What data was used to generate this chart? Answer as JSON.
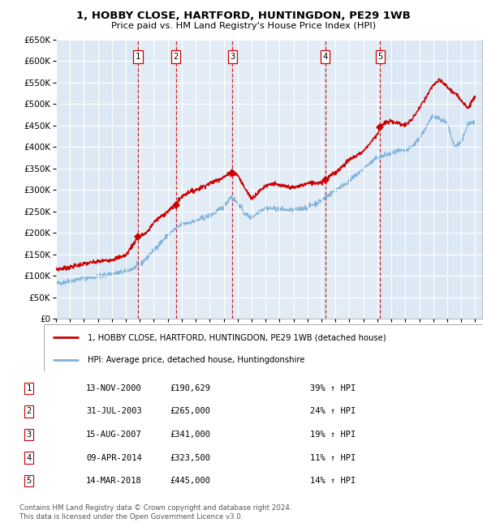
{
  "title1": "1, HOBBY CLOSE, HARTFORD, HUNTINGDON, PE29 1WB",
  "title2": "Price paid vs. HM Land Registry's House Price Index (HPI)",
  "ylim": [
    0,
    650000
  ],
  "yticks": [
    0,
    50000,
    100000,
    150000,
    200000,
    250000,
    300000,
    350000,
    400000,
    450000,
    500000,
    550000,
    600000,
    650000
  ],
  "ytick_labels": [
    "£0",
    "£50K",
    "£100K",
    "£150K",
    "£200K",
    "£250K",
    "£300K",
    "£350K",
    "£400K",
    "£450K",
    "£500K",
    "£550K",
    "£600K",
    "£650K"
  ],
  "background_color": "#ffffff",
  "plot_bg_color": "#dce9f5",
  "grid_color": "#ffffff",
  "sale_color": "#cc0000",
  "hpi_color": "#7fb2d8",
  "sale_label": "1, HOBBY CLOSE, HARTFORD, HUNTINGDON, PE29 1WB (detached house)",
  "hpi_label": "HPI: Average price, detached house, Huntingdonshire",
  "footnote": "Contains HM Land Registry data © Crown copyright and database right 2024.\nThis data is licensed under the Open Government Licence v3.0.",
  "sales": [
    {
      "num": 1,
      "date_label": "13-NOV-2000",
      "price_label": "£190,629",
      "hpi_label": "39% ↑ HPI",
      "x_year": 2000.87,
      "y": 190629
    },
    {
      "num": 2,
      "date_label": "31-JUL-2003",
      "price_label": "£265,000",
      "hpi_label": "24% ↑ HPI",
      "x_year": 2003.58,
      "y": 265000
    },
    {
      "num": 3,
      "date_label": "15-AUG-2007",
      "price_label": "£341,000",
      "hpi_label": "19% ↑ HPI",
      "x_year": 2007.62,
      "y": 341000
    },
    {
      "num": 4,
      "date_label": "09-APR-2014",
      "price_label": "£323,500",
      "hpi_label": "11% ↑ HPI",
      "x_year": 2014.27,
      "y": 323500
    },
    {
      "num": 5,
      "date_label": "14-MAR-2018",
      "price_label": "£445,000",
      "hpi_label": "14% ↑ HPI",
      "x_year": 2018.2,
      "y": 445000
    }
  ],
  "xlim_start": 1995.0,
  "xlim_end": 2025.5,
  "xtick_years": [
    1995,
    1996,
    1997,
    1998,
    1999,
    2000,
    2001,
    2002,
    2003,
    2004,
    2005,
    2006,
    2007,
    2008,
    2009,
    2010,
    2011,
    2012,
    2013,
    2014,
    2015,
    2016,
    2017,
    2018,
    2019,
    2020,
    2021,
    2022,
    2023,
    2024,
    2025
  ]
}
